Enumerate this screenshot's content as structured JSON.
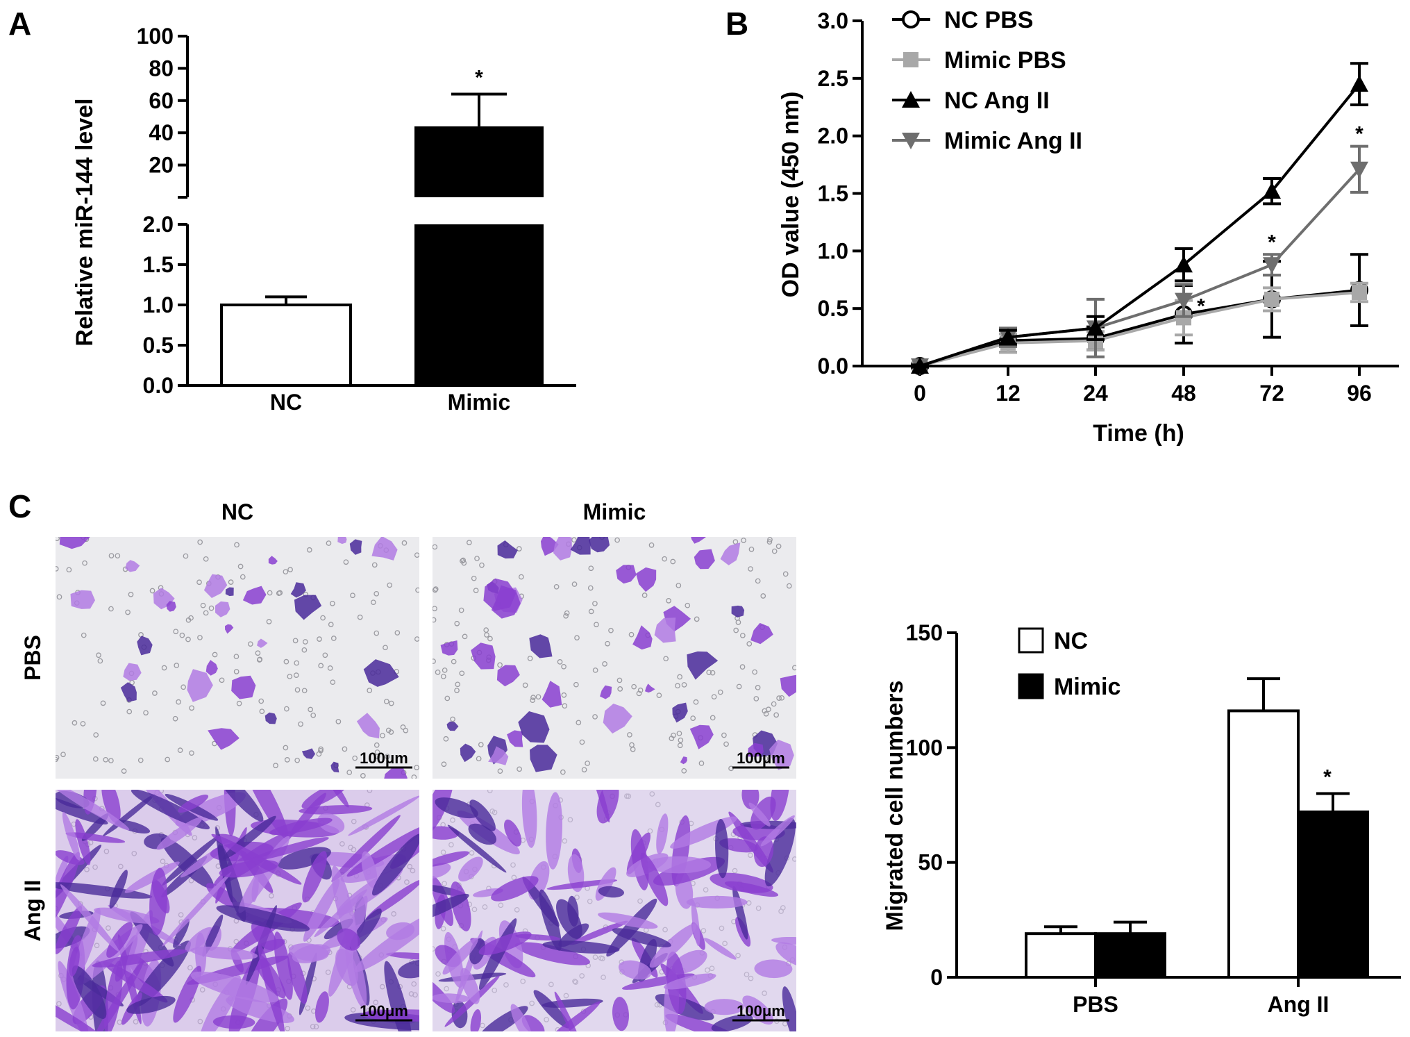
{
  "panels": {
    "A": {
      "letter": "A"
    },
    "B": {
      "letter": "B"
    },
    "C": {
      "letter": "C"
    }
  },
  "micrographs": {
    "col_labels": [
      "NC",
      "Mimic"
    ],
    "row_labels": [
      "PBS",
      "Ang II"
    ],
    "scale_bar_label": "100μm",
    "colors": {
      "background": "#ebebee",
      "stain": "#8a3fd0",
      "stain_light": "#b27be3",
      "stain_dark": "#4a2a9a"
    },
    "cell_density": {
      "PBS": "sparse",
      "Ang II": "dense"
    }
  },
  "chart_data": [
    {
      "id": "A",
      "type": "bar",
      "categories": [
        "NC",
        "Mimic"
      ],
      "values": [
        1.0,
        44
      ],
      "errors": [
        0.1,
        20
      ],
      "colors": [
        "#ffffff",
        "#000000"
      ],
      "significance": [
        "",
        "*"
      ],
      "ylabel": "Relative miR-144 level",
      "xlabel": "",
      "broken_axis": true,
      "lower_segment": {
        "ylim": [
          0,
          2.0
        ],
        "ticks": [
          "0.0",
          "0.5",
          "1.0",
          "1.5",
          "2.0"
        ]
      },
      "upper_segment": {
        "ylim": [
          0,
          100
        ],
        "ticks": [
          "20",
          "40",
          "60",
          "80",
          "100"
        ]
      }
    },
    {
      "id": "B",
      "type": "line",
      "x": [
        0,
        12,
        24,
        48,
        72,
        96
      ],
      "x_tick_labels": [
        "0",
        "12",
        "24",
        "48",
        "72",
        "96"
      ],
      "xlabel": "Time (h)",
      "ylabel": "OD value (450 nm)",
      "ylim": [
        0,
        3.0
      ],
      "y_ticks": [
        "0.0",
        "0.5",
        "1.0",
        "1.5",
        "2.0",
        "2.5",
        "3.0"
      ],
      "legend_position": "top-left",
      "series": [
        {
          "name": "NC PBS",
          "color": "#000000",
          "marker": "circle-open",
          "values": [
            0.0,
            0.22,
            0.24,
            0.45,
            0.58,
            0.66
          ],
          "errors": [
            0.01,
            0.1,
            0.1,
            0.25,
            0.33,
            0.31
          ]
        },
        {
          "name": "Mimic PBS",
          "color": "#a8a8a8",
          "marker": "square",
          "values": [
            0.0,
            0.2,
            0.22,
            0.42,
            0.58,
            0.64
          ],
          "errors": [
            0.01,
            0.08,
            0.08,
            0.15,
            0.1,
            0.08
          ]
        },
        {
          "name": "NC Ang II",
          "color": "#000000",
          "marker": "triangle-up",
          "values": [
            0.0,
            0.25,
            0.33,
            0.88,
            1.52,
            2.45
          ],
          "errors": [
            0.01,
            0.06,
            0.1,
            0.14,
            0.11,
            0.18
          ]
        },
        {
          "name": "Mimic Ang II",
          "color": "#6e6e6e",
          "marker": "triangle-down",
          "values": [
            0.0,
            0.25,
            0.33,
            0.57,
            0.88,
            1.71
          ],
          "errors": [
            0.01,
            0.08,
            0.25,
            0.14,
            0.09,
            0.2
          ]
        }
      ],
      "significance": [
        {
          "x": 48,
          "label": "*"
        },
        {
          "x": 72,
          "label": "*"
        },
        {
          "x": 96,
          "label": "*"
        }
      ]
    },
    {
      "id": "C",
      "type": "bar",
      "categories": [
        "PBS",
        "Ang II"
      ],
      "ylabel": "Migrated cell numbers",
      "xlabel": "",
      "ylim": [
        0,
        150
      ],
      "y_ticks": [
        "0",
        "50",
        "100",
        "150"
      ],
      "legend_position": "top-left",
      "series": [
        {
          "name": "NC",
          "color": "#ffffff",
          "values": [
            19,
            116
          ],
          "errors": [
            3,
            14
          ]
        },
        {
          "name": "Mimic",
          "color": "#000000",
          "values": [
            19,
            72
          ],
          "errors": [
            5,
            8
          ]
        }
      ],
      "significance": [
        {
          "category": "Ang II",
          "series": "Mimic",
          "label": "*"
        }
      ]
    }
  ]
}
